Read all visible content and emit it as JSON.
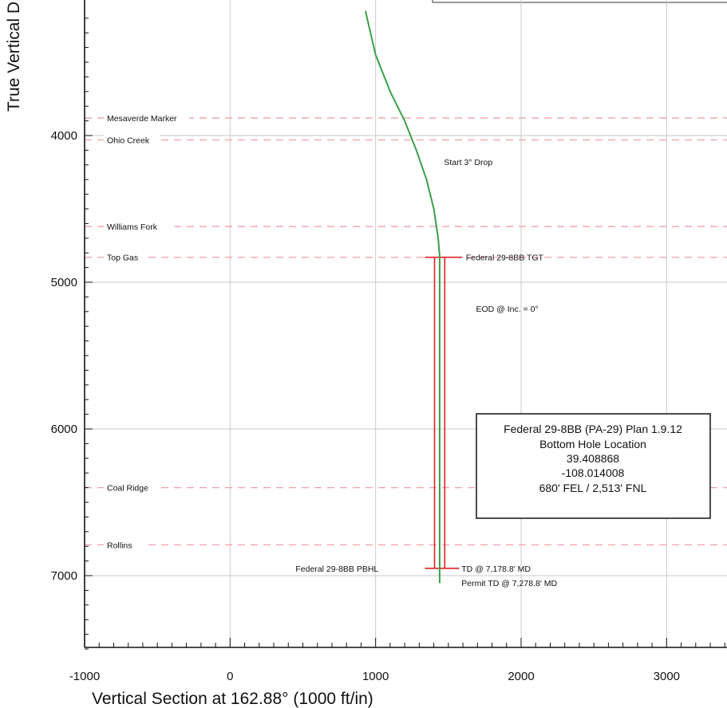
{
  "chart_data": {
    "type": "line",
    "xlabel": "Vertical Section at 162.88° (1000 ft/in)",
    "ylabel": "True Vertical D",
    "xlim": [
      -1000,
      3400
    ],
    "ylim": [
      3150,
      7550
    ],
    "y_inverted": true,
    "grid": true,
    "x_ticks": [
      -1000,
      0,
      1000,
      2000,
      3000
    ],
    "x_tick_labels": [
      "-1000",
      "0",
      "1000",
      "2000",
      "3000"
    ],
    "y_ticks": [
      4000,
      5000,
      6000,
      7000
    ],
    "y_tick_labels": [
      "4000",
      "5000",
      "6000",
      "7000"
    ],
    "series": [
      {
        "name": "",
        "color": "#3aa04a",
        "x": [
          930,
          1000,
          1100,
          1200,
          1280,
          1350,
          1400,
          1430,
          1440,
          1440
        ],
        "y": [
          3150,
          3450,
          3700,
          3900,
          4100,
          4300,
          4500,
          4700,
          4820,
          7050
        ]
      }
    ],
    "formations": [
      {
        "label": "Mesaverde Marker",
        "tvd": 3880
      },
      {
        "label": "Ohio Creek",
        "tvd": 4030
      },
      {
        "label": "Williams Fork",
        "tvd": 4620
      },
      {
        "label": "Top Gas",
        "tvd": 4830
      },
      {
        "label": "Coal Ridge",
        "tvd": 6400
      },
      {
        "label": "Rollins",
        "tvd": 6790
      }
    ],
    "annotations": [
      {
        "text": "Start 3° Drop",
        "x": 1470,
        "y": 4180
      },
      {
        "text": "Federal 29-8BB TGT",
        "x": 1620,
        "y": 4830
      },
      {
        "text": "EOD @ Inc. = 0°",
        "x": 1690,
        "y": 5180
      },
      {
        "text": "Federal 29-8BB PBHL",
        "x": 450,
        "y": 6950
      },
      {
        "text": "TD @ 7,178.8' MD",
        "x": 1590,
        "y": 6950
      },
      {
        "text": "Permit TD @ 7,278.8' MD",
        "x": 1590,
        "y": 7050
      }
    ],
    "target": {
      "x_left": 1405,
      "x_right": 1475,
      "tvd_top": 4830,
      "tvd_bottom": 6950,
      "color": "#e02020"
    },
    "info_box": {
      "lines": [
        "Federal 29-8BB (PA-29) Plan 1.9.12",
        "Bottom Hole Location",
        "39.408868",
        "-108.014008",
        "680' FEL / 2,513' FNL"
      ]
    }
  },
  "colors": {
    "grid": "#c8c8c8",
    "formation_line": "#f2a0a8",
    "axis": "#111111"
  }
}
